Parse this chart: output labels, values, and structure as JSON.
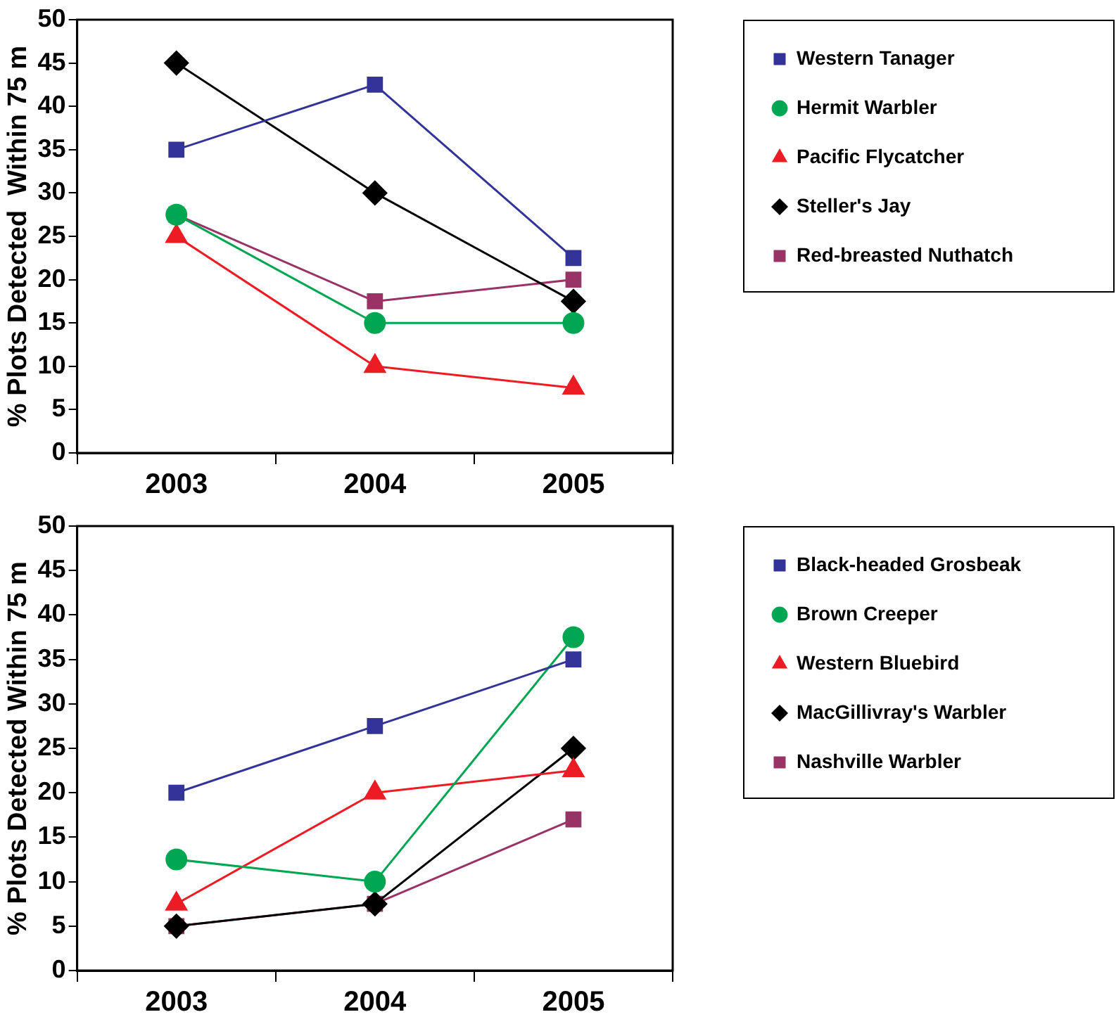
{
  "chart_data": [
    {
      "type": "line",
      "ylabel": "% Plots Detected  Within 75 m",
      "categories": [
        "2003",
        "2004",
        "2005"
      ],
      "ylim": [
        0,
        50
      ],
      "yticks": [
        0,
        5,
        10,
        15,
        20,
        25,
        30,
        35,
        40,
        45,
        50
      ],
      "legend": "top right",
      "grid": false,
      "series": [
        {
          "name": "Western Tanager",
          "color": "#333399",
          "marker": "square",
          "values": [
            35,
            42.5,
            22.5
          ]
        },
        {
          "name": "Hermit Warbler",
          "color": "#00a651",
          "marker": "circle",
          "values": [
            27.5,
            15,
            15
          ]
        },
        {
          "name": "Pacific Flycatcher",
          "color": "#ed1c24",
          "marker": "triangle",
          "values": [
            25,
            10,
            7.5
          ]
        },
        {
          "name": "Steller's Jay",
          "color": "#000000",
          "marker": "diamond",
          "values": [
            45,
            30,
            17.5
          ]
        },
        {
          "name": "Red-breasted Nuthatch",
          "color": "#993366",
          "marker": "square",
          "values": [
            27.5,
            17.5,
            20
          ]
        }
      ]
    },
    {
      "type": "line",
      "ylabel": "% Plots Detected Within 75 m",
      "categories": [
        "2003",
        "2004",
        "2005"
      ],
      "ylim": [
        0,
        50
      ],
      "yticks": [
        0,
        5,
        10,
        15,
        20,
        25,
        30,
        35,
        40,
        45,
        50
      ],
      "legend": "top right",
      "grid": false,
      "series": [
        {
          "name": "Black-headed Grosbeak",
          "color": "#333399",
          "marker": "square",
          "values": [
            20,
            27.5,
            35
          ]
        },
        {
          "name": "Brown Creeper",
          "color": "#00a651",
          "marker": "circle",
          "values": [
            12.5,
            10,
            37.5
          ]
        },
        {
          "name": "Western Bluebird",
          "color": "#ed1c24",
          "marker": "triangle",
          "values": [
            7.5,
            20,
            22.5
          ]
        },
        {
          "name": "MacGillivray's Warbler",
          "color": "#000000",
          "marker": "diamond",
          "values": [
            5,
            7.5,
            25
          ]
        },
        {
          "name": "Nashville Warbler",
          "color": "#993366",
          "marker": "square",
          "values": [
            5,
            7.5,
            17
          ]
        }
      ]
    }
  ]
}
